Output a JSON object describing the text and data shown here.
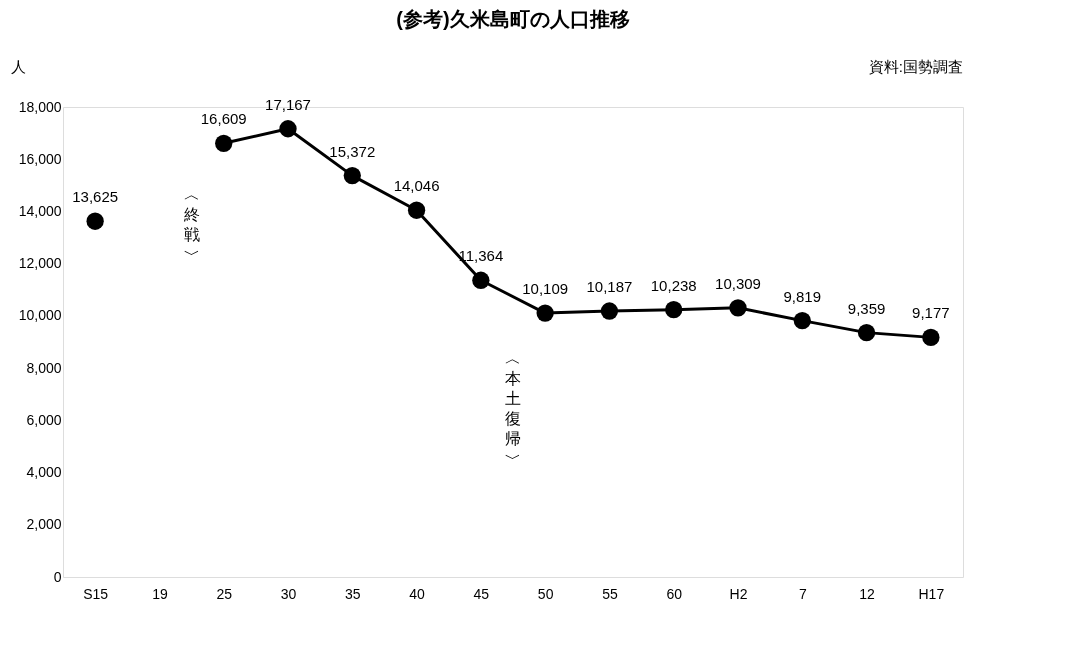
{
  "chart_data": {
    "type": "line",
    "title": "(参考)久米島町の人口推移",
    "ylabel": "人",
    "categories": [
      "S15",
      "19",
      "25",
      "30",
      "35",
      "40",
      "45",
      "50",
      "55",
      "60",
      "H2",
      "7",
      "12",
      "H17"
    ],
    "series": [
      {
        "color": "#000000",
        "values": [
          13625,
          null,
          16609,
          17167,
          15372,
          14046,
          11364,
          10109,
          10187,
          10238,
          10309,
          9819,
          9359,
          9177
        ]
      }
    ],
    "ylim": [
      0,
      18000
    ],
    "yticks": [
      0,
      {
        "value": 2000,
        "label": "2,000"
      },
      {
        "value": 4000,
        "label": "4,000"
      },
      {
        "value": 6000,
        "label": "6,000"
      },
      {
        "value": 8000,
        "label": "8,000"
      },
      {
        "value": 10000,
        "label": "10,000"
      },
      {
        "value": 12000,
        "label": "12,000"
      },
      {
        "value": 14000,
        "label": "14,000"
      },
      {
        "value": 16000,
        "label": "16,000"
      },
      {
        "value": 18000,
        "label": "18,000"
      }
    ],
    "value_labels": [
      "13,625",
      null,
      "16,609",
      "17,167",
      "15,372",
      "14,046",
      "11,364",
      "10,109",
      "10,187",
      "10,238",
      "10,309",
      "9,819",
      "9,359",
      "9,177"
    ],
    "grid": false,
    "marker": "circle",
    "line_style": "solid",
    "legend": false,
    "annotations": [
      "︿終戦﹀",
      "︿本土復帰﹀",
      "資料:国勢調査"
    ]
  }
}
